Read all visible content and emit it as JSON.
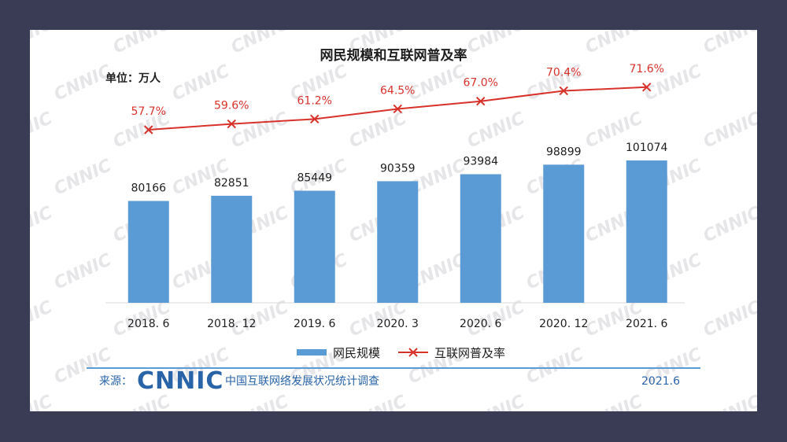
{
  "chart_data": {
    "type": "bar",
    "title": "网民规模和互联网普及率",
    "unit_label": "单位：万人",
    "categories": [
      "2018. 6",
      "2018. 12",
      "2019. 6",
      "2020. 3",
      "2020. 6",
      "2020. 12",
      "2021. 6"
    ],
    "series": [
      {
        "name": "网民规模",
        "type": "bar",
        "values": [
          80166,
          82851,
          85449,
          90359,
          93984,
          98899,
          101074
        ],
        "color": "#5b9bd5"
      },
      {
        "name": "互联网普及率",
        "type": "line",
        "values": [
          57.7,
          59.6,
          61.2,
          64.5,
          67.0,
          70.4,
          71.6
        ],
        "labels": [
          "57.7%",
          "59.6%",
          "61.2%",
          "64.5%",
          "67.0%",
          "70.4%",
          "71.6%"
        ],
        "color": "#d8322c",
        "marker": "x"
      }
    ],
    "legend_position": "bottom-center",
    "grid": false
  },
  "watermark": "CNNIC",
  "footer": {
    "source_label": "来源：",
    "logo_text": "CNNIC",
    "org_name": "中国互联网络发展状况统计调查",
    "date": "2021.6"
  }
}
